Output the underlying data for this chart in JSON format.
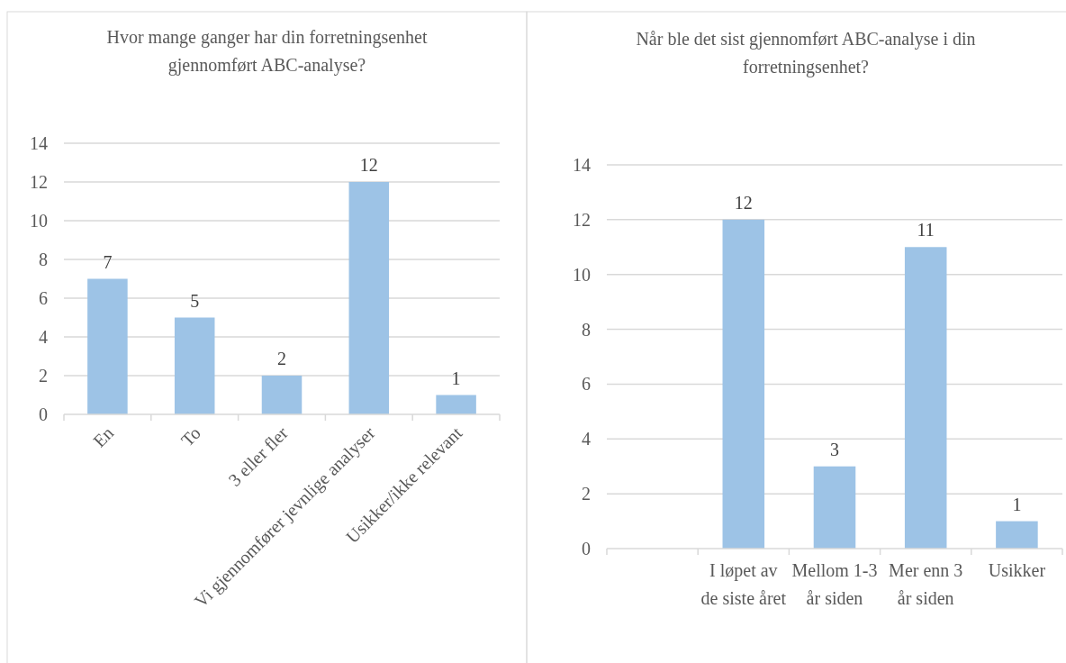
{
  "chart_data": [
    {
      "type": "bar",
      "title": "Hvor mange ganger har din forretningsenhet gjennomført ABC-analyse?",
      "categories": [
        "En",
        "To",
        "3 eller fler",
        "Vi gjennomfører jevnlige analyser",
        "Usikker/ikke relevant"
      ],
      "values": [
        7,
        5,
        2,
        12,
        1
      ],
      "color": "#9dc3e6",
      "ylim": [
        0,
        14
      ],
      "yticks": [
        0,
        2,
        4,
        6,
        8,
        10,
        12,
        14
      ],
      "grid": "y",
      "data_labels": true
    },
    {
      "type": "bar",
      "title": "Når ble det sist gjennomført ABC-analyse i din forretningsenhet?",
      "categories": [
        null,
        "I løpet av de siste året",
        "Mellom 1-3 år siden",
        "Mer enn 3 år siden",
        "Usikker"
      ],
      "values": [
        null,
        12,
        3,
        11,
        1
      ],
      "color": "#9dc3e6",
      "ylim": [
        0,
        14
      ],
      "yticks": [
        0,
        2,
        4,
        6,
        8,
        10,
        12,
        14
      ],
      "grid": "y",
      "data_labels": true
    }
  ]
}
